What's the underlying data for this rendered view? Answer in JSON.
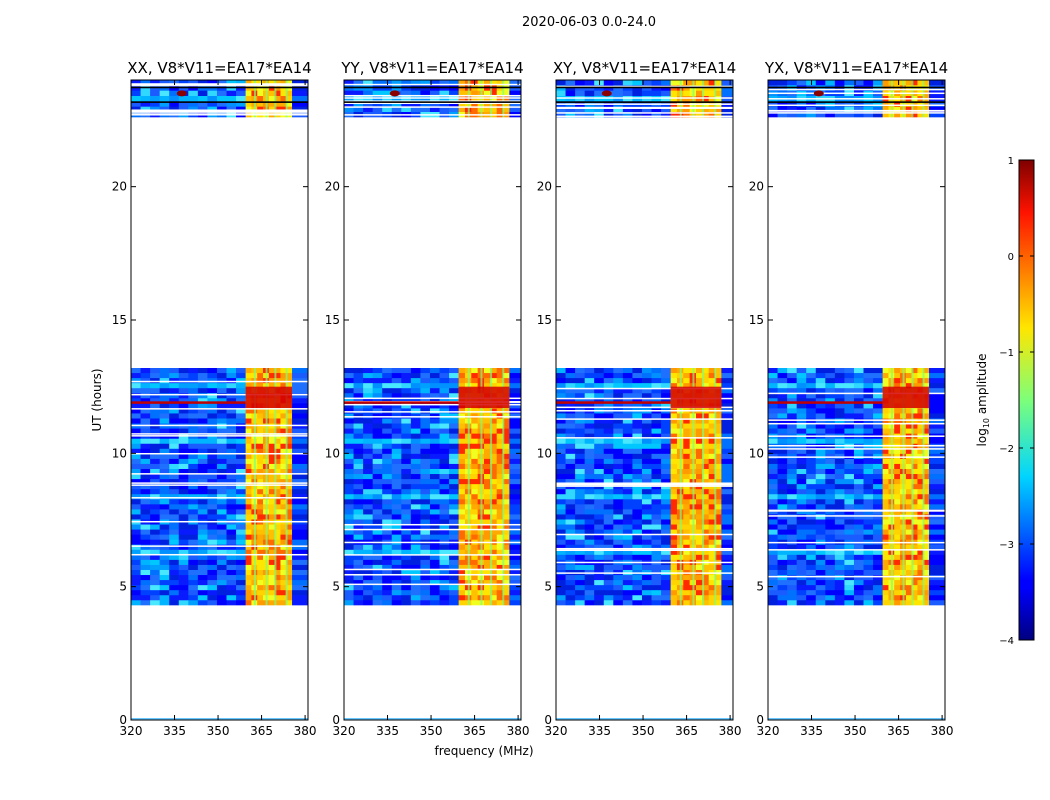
{
  "suptitle": "2020-06-03 0.0-24.0",
  "chart_data": {
    "type": "heatmap",
    "xlabel": "frequency (MHz)",
    "ylabel": "UT (hours)",
    "xlim": [
      320,
      381
    ],
    "ylim": [
      0,
      24
    ],
    "xticks": [
      320,
      335,
      350,
      365,
      380
    ],
    "yticks": [
      0,
      5,
      10,
      15,
      20
    ],
    "xtick_labels": [
      "320",
      "335",
      "350",
      "365",
      "380"
    ],
    "ytick_labels": [
      "0",
      "5",
      "10",
      "15",
      "20"
    ],
    "panels": [
      {
        "title": "XX, V8*V11=EA17*EA14",
        "rfi_band_mhz": [
          359.5,
          375.5
        ]
      },
      {
        "title": "YY, V8*V11=EA17*EA14",
        "rfi_band_mhz": [
          359.5,
          377
        ]
      },
      {
        "title": "XY, V8*V11=EA17*EA14",
        "rfi_band_mhz": [
          359.5,
          377
        ]
      },
      {
        "title": "YX, V8*V11=EA17*EA14",
        "rfi_band_mhz": [
          359.5,
          375.5
        ]
      }
    ],
    "data_time_ranges_hours": [
      [
        4.3,
        13.2
      ],
      [
        22.6,
        24.0
      ]
    ],
    "colorbar": {
      "label": "log10 amplitude",
      "label_main": "log",
      "label_sub": "10",
      "label_rest": " amplitude",
      "range": [
        -4,
        1
      ],
      "ticks": [
        1,
        0,
        -1,
        -2,
        -3,
        -4
      ],
      "tick_labels": [
        "1",
        "0",
        "−1",
        "−2",
        "−3",
        "−4"
      ]
    }
  }
}
